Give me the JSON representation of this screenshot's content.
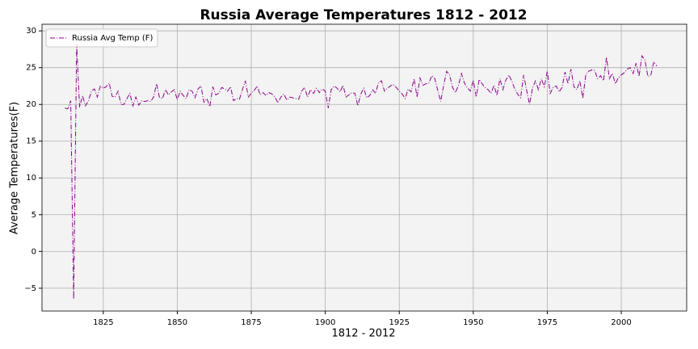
{
  "chart_data": {
    "type": "line",
    "title": "Russia Average Temperatures 1812 - 2012",
    "x_label": "1812 - 2012",
    "y_label": "Average Temperatures(F)",
    "x": [
      1812,
      1813,
      1814,
      1815,
      1816,
      1817,
      1818,
      1819,
      1820,
      1821,
      1822,
      1823,
      1824,
      1825,
      1826,
      1827,
      1828,
      1829,
      1830,
      1831,
      1832,
      1833,
      1834,
      1835,
      1836,
      1837,
      1838,
      1839,
      1840,
      1841,
      1842,
      1843,
      1844,
      1845,
      1846,
      1847,
      1848,
      1849,
      1850,
      1851,
      1852,
      1853,
      1854,
      1855,
      1856,
      1857,
      1858,
      1859,
      1860,
      1861,
      1862,
      1863,
      1864,
      1865,
      1866,
      1867,
      1868,
      1869,
      1870,
      1871,
      1872,
      1873,
      1874,
      1875,
      1876,
      1877,
      1878,
      1879,
      1880,
      1881,
      1882,
      1883,
      1884,
      1885,
      1886,
      1887,
      1888,
      1889,
      1890,
      1891,
      1892,
      1893,
      1894,
      1895,
      1896,
      1897,
      1898,
      1899,
      1900,
      1901,
      1902,
      1903,
      1904,
      1905,
      1906,
      1907,
      1908,
      1909,
      1910,
      1911,
      1912,
      1913,
      1914,
      1915,
      1916,
      1917,
      1918,
      1919,
      1920,
      1921,
      1922,
      1923,
      1924,
      1925,
      1926,
      1927,
      1928,
      1929,
      1930,
      1931,
      1932,
      1933,
      1934,
      1935,
      1936,
      1937,
      1938,
      1939,
      1940,
      1941,
      1942,
      1943,
      1944,
      1945,
      1946,
      1947,
      1948,
      1949,
      1950,
      1951,
      1952,
      1953,
      1954,
      1955,
      1956,
      1957,
      1958,
      1959,
      1960,
      1961,
      1962,
      1963,
      1964,
      1965,
      1966,
      1967,
      1968,
      1969,
      1970,
      1971,
      1972,
      1973,
      1974,
      1975,
      1976,
      1977,
      1978,
      1979,
      1980,
      1981,
      1982,
      1983,
      1984,
      1985,
      1986,
      1987,
      1988,
      1989,
      1990,
      1991,
      1992,
      1993,
      1994,
      1995,
      1996,
      1997,
      1998,
      1999,
      2000,
      2001,
      2002,
      2003,
      2004,
      2005,
      2006,
      2007,
      2008,
      2009,
      2010,
      2011,
      2012
    ],
    "series": [
      {
        "name": "Russia Avg Temp (F)",
        "color": "#8b008b",
        "line_style": "dashdot",
        "values": [
          19.5,
          19.4,
          20.5,
          -6.5,
          28.2,
          19.6,
          21.2,
          19.8,
          20.5,
          21.8,
          22.1,
          21.0,
          22.5,
          22.2,
          22.4,
          22.9,
          21.1,
          21.0,
          21.8,
          20.0,
          20.0,
          20.8,
          21.5,
          19.8,
          21.0,
          19.9,
          20.5,
          20.4,
          20.5,
          20.4,
          21.0,
          22.8,
          20.9,
          20.8,
          22.0,
          21.3,
          21.7,
          22.0,
          20.6,
          21.8,
          21.2,
          20.8,
          22.0,
          21.8,
          20.9,
          22.1,
          22.5,
          20.3,
          20.8,
          19.7,
          22.4,
          21.3,
          21.5,
          22.3,
          22.1,
          21.8,
          22.4,
          20.5,
          20.8,
          20.7,
          22.0,
          23.2,
          21.0,
          21.5,
          21.9,
          22.5,
          21.3,
          21.6,
          21.2,
          21.6,
          21.4,
          21.0,
          20.2,
          21.0,
          21.4,
          20.6,
          21.0,
          20.9,
          20.8,
          20.7,
          21.8,
          22.3,
          21.0,
          22.0,
          21.5,
          22.2,
          21.6,
          22.1,
          21.8,
          19.5,
          22.0,
          22.5,
          22.2,
          21.7,
          22.6,
          21.0,
          21.3,
          21.6,
          21.5,
          19.8,
          21.4,
          22.2,
          20.9,
          21.2,
          22.0,
          21.5,
          23.0,
          23.2,
          21.8,
          22.2,
          22.5,
          22.7,
          22.3,
          21.8,
          21.4,
          20.8,
          22.1,
          21.7,
          23.5,
          21.0,
          23.6,
          22.6,
          22.8,
          22.9,
          23.9,
          23.5,
          21.9,
          20.4,
          22.6,
          24.5,
          24.0,
          22.3,
          21.6,
          22.6,
          24.2,
          22.9,
          22.3,
          21.8,
          23.3,
          21.0,
          23.4,
          22.8,
          22.3,
          22.0,
          21.5,
          22.6,
          21.2,
          23.5,
          22.0,
          23.3,
          24.0,
          23.2,
          22.1,
          21.4,
          20.9,
          24.0,
          22.0,
          20.0,
          22.2,
          23.2,
          22.0,
          23.5,
          22.4,
          24.5,
          21.5,
          22.3,
          22.5,
          21.7,
          22.3,
          24.4,
          22.8,
          24.8,
          22.4,
          22.0,
          23.2,
          20.8,
          24.0,
          24.5,
          24.7,
          24.6,
          23.5,
          23.9,
          23.2,
          26.4,
          23.5,
          24.2,
          22.8,
          23.6,
          24.0,
          24.3,
          24.8,
          25.0,
          24.2,
          25.6,
          23.8,
          26.6,
          26.0,
          23.8,
          24.0,
          25.8,
          25.2
        ]
      }
    ],
    "xlim": [
      1804.3,
      2022.1
    ],
    "ylim": [
      -8.1,
      30.9
    ],
    "xticks": [
      1825,
      1850,
      1875,
      1900,
      1925,
      1950,
      1975,
      2000
    ],
    "yticks": [
      {
        "value": -5,
        "label": "−5"
      },
      0,
      5,
      10,
      15,
      20,
      25,
      30
    ],
    "grid": true,
    "legend": "upper left"
  }
}
